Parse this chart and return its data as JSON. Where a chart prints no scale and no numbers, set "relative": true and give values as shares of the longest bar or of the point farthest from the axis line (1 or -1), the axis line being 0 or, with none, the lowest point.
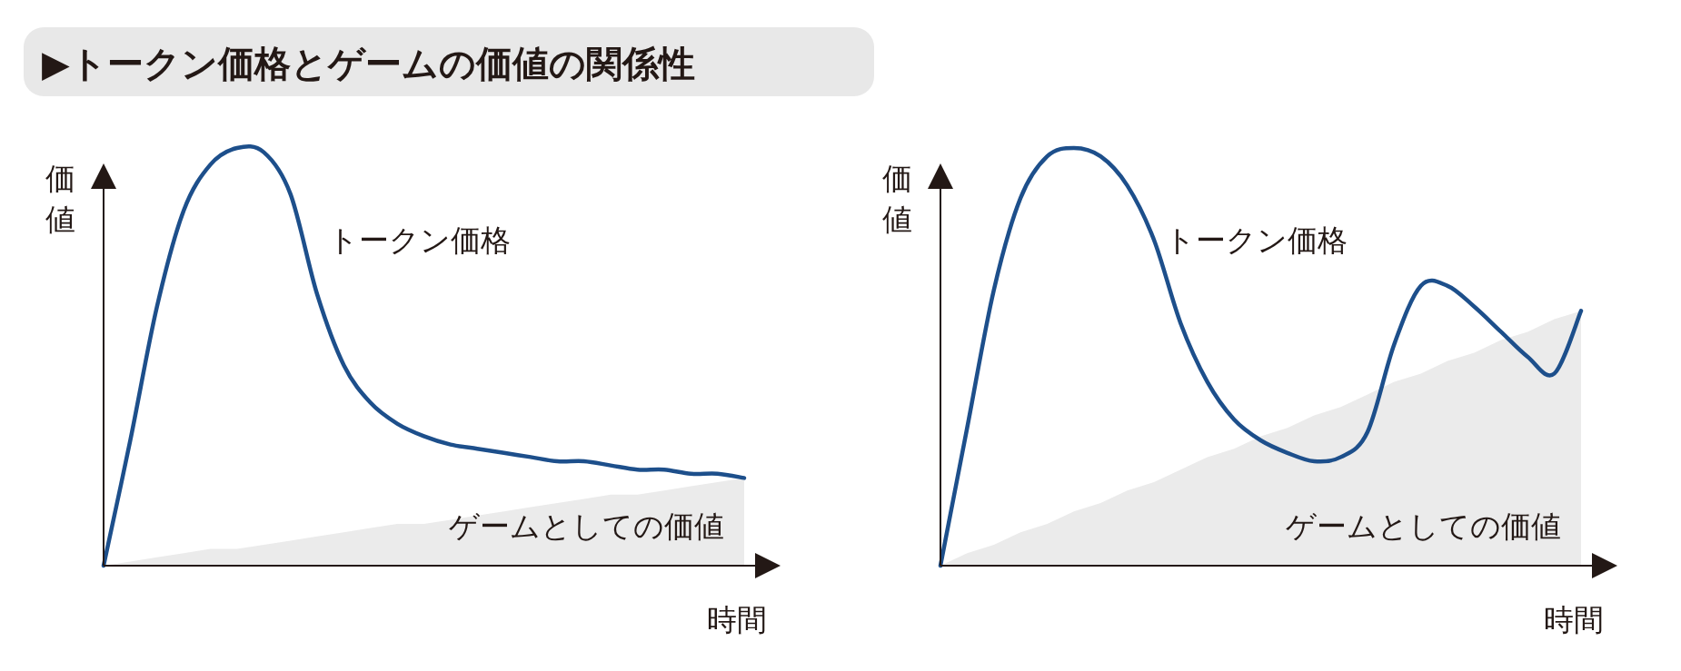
{
  "chart_data": [
    {
      "type": "line",
      "title": "▶トークン価格とゲームの価値の関係性",
      "xlabel": "時間",
      "ylabel": "価値",
      "relative": true,
      "grid": false,
      "categories": [
        null,
        null,
        null,
        null,
        null,
        null,
        null,
        null,
        null,
        null,
        null,
        null,
        null,
        null,
        null,
        null,
        null,
        null,
        null,
        null,
        null,
        null,
        null,
        null,
        null
      ],
      "series": [
        {
          "name": "ゲームとしての価値",
          "type": "area",
          "color": "#ebebeb",
          "values": [
            0,
            0.01,
            0.02,
            0.03,
            0.04,
            0.04,
            0.05,
            0.06,
            0.07,
            0.08,
            0.09,
            0.1,
            0.1,
            0.11,
            0.12,
            0.13,
            0.14,
            0.15,
            0.16,
            0.17,
            0.17,
            0.18,
            0.19,
            0.2,
            0.21
          ]
        },
        {
          "name": "トークン価格",
          "color": "#1d4f8b",
          "values": [
            0,
            0.3,
            0.62,
            0.85,
            0.96,
            1.0,
            0.99,
            0.89,
            0.65,
            0.48,
            0.39,
            0.34,
            0.31,
            0.29,
            0.28,
            0.27,
            0.26,
            0.25,
            0.25,
            0.24,
            0.23,
            0.23,
            0.22,
            0.22,
            0.21
          ]
        }
      ]
    },
    {
      "type": "line",
      "xlabel": "時間",
      "ylabel": "価値",
      "relative": true,
      "grid": false,
      "categories": [
        null,
        null,
        null,
        null,
        null,
        null,
        null,
        null,
        null,
        null,
        null,
        null,
        null,
        null,
        null,
        null,
        null,
        null,
        null,
        null,
        null,
        null,
        null,
        null,
        null
      ],
      "series": [
        {
          "name": "ゲームとしての価値",
          "type": "area",
          "color": "#ebebeb",
          "values": [
            0,
            0.03,
            0.05,
            0.08,
            0.1,
            0.13,
            0.15,
            0.18,
            0.2,
            0.23,
            0.26,
            0.28,
            0.31,
            0.33,
            0.36,
            0.38,
            0.41,
            0.44,
            0.46,
            0.49,
            0.51,
            0.54,
            0.56,
            0.59,
            0.61
          ]
        },
        {
          "name": "トークン価格",
          "color": "#1d4f8b",
          "values": [
            0,
            0.33,
            0.66,
            0.88,
            0.98,
            1.0,
            0.98,
            0.91,
            0.78,
            0.58,
            0.44,
            0.35,
            0.3,
            0.27,
            0.25,
            0.26,
            0.32,
            0.53,
            0.67,
            0.67,
            0.62,
            0.56,
            0.5,
            0.46,
            0.61
          ]
        }
      ]
    }
  ]
}
